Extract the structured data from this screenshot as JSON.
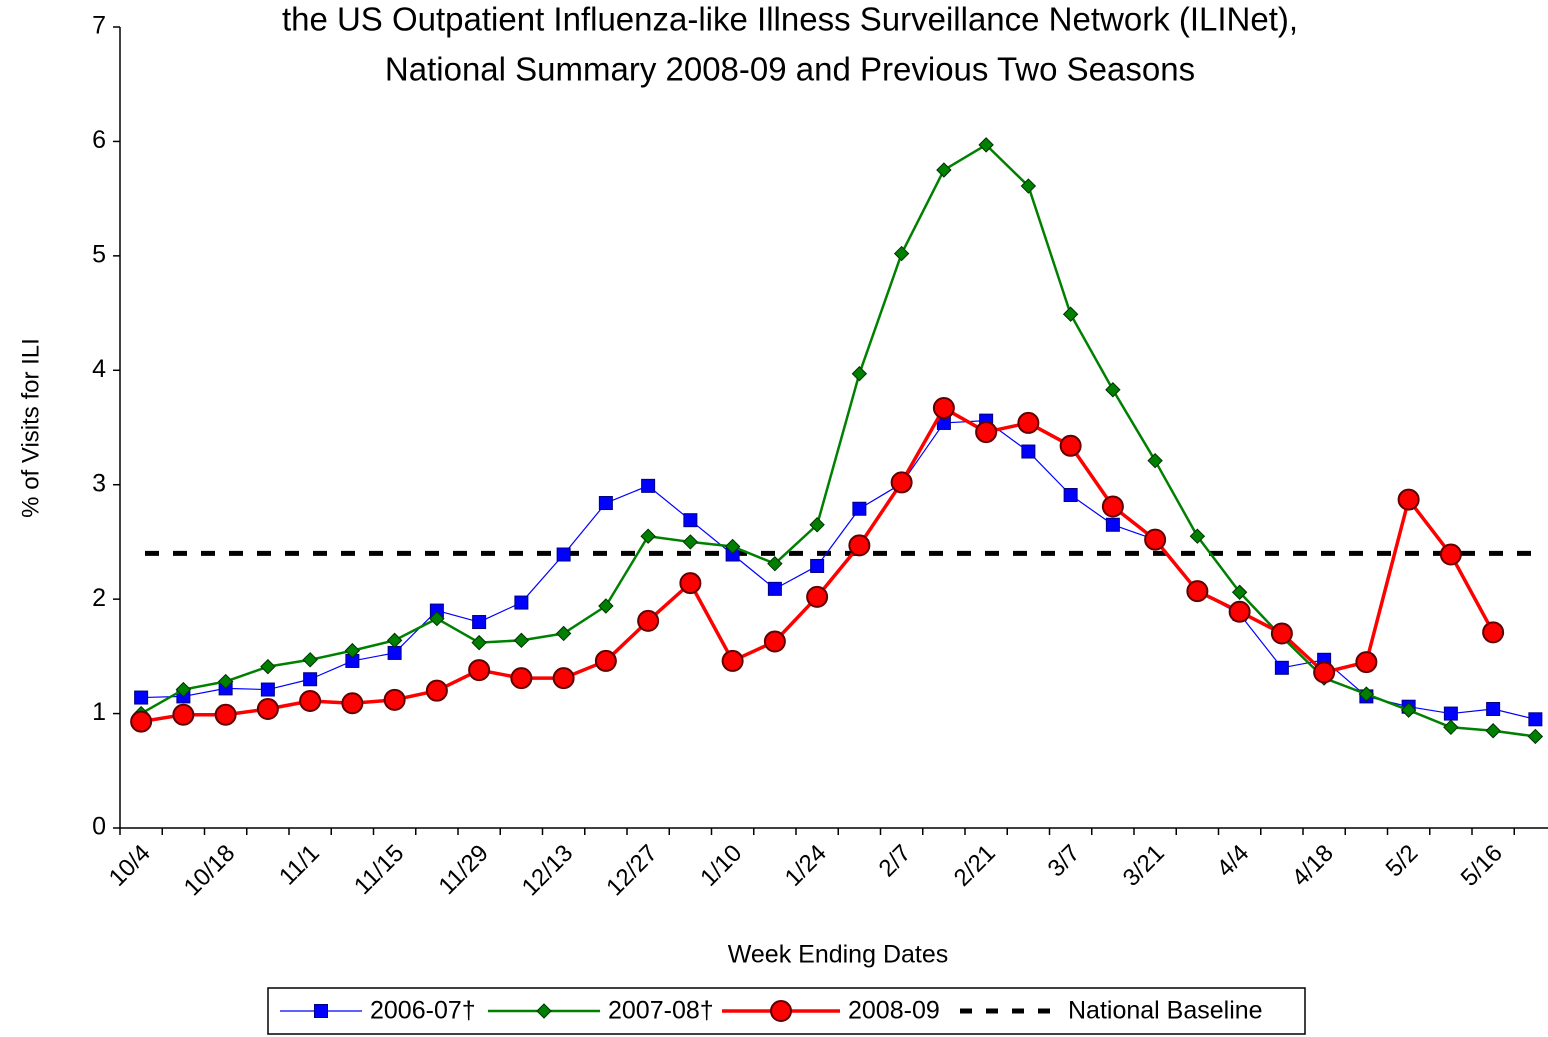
{
  "chart_data": {
    "type": "line",
    "title": [
      "the US Outpatient Influenza-like Illness Surveillance Network (ILINet),",
      "National Summary 2008-09 and Previous Two Seasons"
    ],
    "x_label": "Week Ending Dates",
    "y_label": "% of Visits for ILI",
    "categories": [
      "10/4",
      null,
      "10/18",
      null,
      "11/1",
      null,
      "11/15",
      null,
      "11/29",
      null,
      "12/13",
      null,
      "12/27",
      null,
      "1/10",
      null,
      "1/24",
      null,
      "2/7",
      null,
      "2/21",
      null,
      "3/7",
      null,
      "3/21",
      null,
      "4/4",
      null,
      "4/18",
      null,
      "5/2",
      null,
      "5/16",
      null
    ],
    "series": [
      {
        "name": "2006-07†",
        "color": "#0000ff",
        "marker": "square",
        "line_width": 1.2,
        "values": [
          1.14,
          1.15,
          1.22,
          1.21,
          1.3,
          1.46,
          1.53,
          1.9,
          1.8,
          1.97,
          2.39,
          2.84,
          2.99,
          2.69,
          2.39,
          2.09,
          2.29,
          2.79,
          3.01,
          3.54,
          3.56,
          3.29,
          2.91,
          2.65,
          2.52,
          2.07,
          1.87,
          1.4,
          1.47,
          1.15,
          1.06,
          1.0,
          1.04,
          0.95
        ]
      },
      {
        "name": "2007-08†",
        "color": "#008000",
        "marker": "diamond",
        "line_width": 2.5,
        "values": [
          1.0,
          1.21,
          1.28,
          1.41,
          1.47,
          1.55,
          1.64,
          1.83,
          1.62,
          1.64,
          1.7,
          1.94,
          2.55,
          2.5,
          2.46,
          2.31,
          2.65,
          3.97,
          5.02,
          5.75,
          5.97,
          5.61,
          4.49,
          3.83,
          3.21,
          2.55,
          2.06,
          1.67,
          1.31,
          1.17,
          1.03,
          0.88,
          0.85,
          0.8
        ]
      },
      {
        "name": "2008-09",
        "color": "#ff0000",
        "marker": "circle",
        "line_width": 3.5,
        "values": [
          0.93,
          0.99,
          0.99,
          1.04,
          1.11,
          1.09,
          1.12,
          1.2,
          1.38,
          1.31,
          1.31,
          1.46,
          1.81,
          2.14,
          1.46,
          1.63,
          2.02,
          2.47,
          3.02,
          3.67,
          3.46,
          3.54,
          3.34,
          2.81,
          2.52,
          2.07,
          1.89,
          1.7,
          1.36,
          1.45,
          2.87,
          2.39,
          1.71,
          null
        ]
      }
    ],
    "baseline": {
      "name": "National Baseline",
      "value": 2.4,
      "color": "#000000"
    },
    "ylim": [
      0,
      7
    ],
    "yticks": [
      0,
      1,
      2,
      3,
      4,
      5,
      6,
      7
    ],
    "grid": false,
    "legend": "bottom"
  }
}
